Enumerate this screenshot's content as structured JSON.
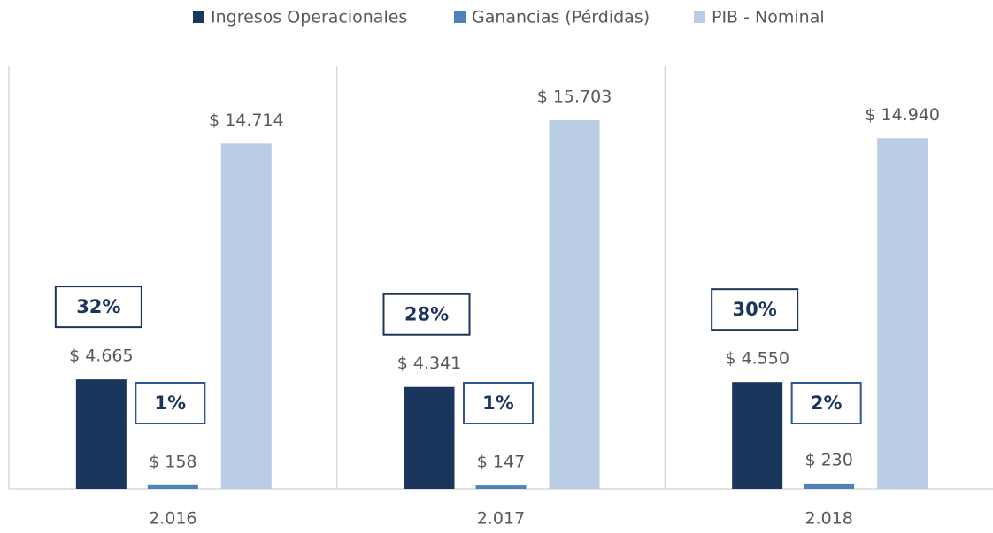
{
  "chart_data": {
    "type": "bar",
    "categories": [
      "2.016",
      "2.017",
      "2.018"
    ],
    "series": [
      {
        "name": "Ingresos Operacionales",
        "color": "#1b365d",
        "values": [
          4665,
          4341,
          4550
        ],
        "value_labels": [
          "$ 4.665",
          "$ 4.341",
          "$ 4.550"
        ],
        "box_labels": [
          "32%",
          "28%",
          "30%"
        ]
      },
      {
        "name": "Ganancias (Pérdidas)",
        "color": "#4f81bd",
        "values": [
          158,
          147,
          230
        ],
        "value_labels": [
          "$ 158",
          "$ 147",
          "$ 230"
        ],
        "box_labels": [
          "1%",
          "1%",
          "2%"
        ]
      },
      {
        "name": "PIB - Nominal",
        "color": "#b9cde5",
        "values": [
          14714,
          15703,
          14940
        ],
        "value_labels": [
          "$ 14.714",
          "$ 15.703",
          "$ 14.940"
        ]
      }
    ],
    "ylim": [
      0,
      18000
    ],
    "legend": "top"
  }
}
